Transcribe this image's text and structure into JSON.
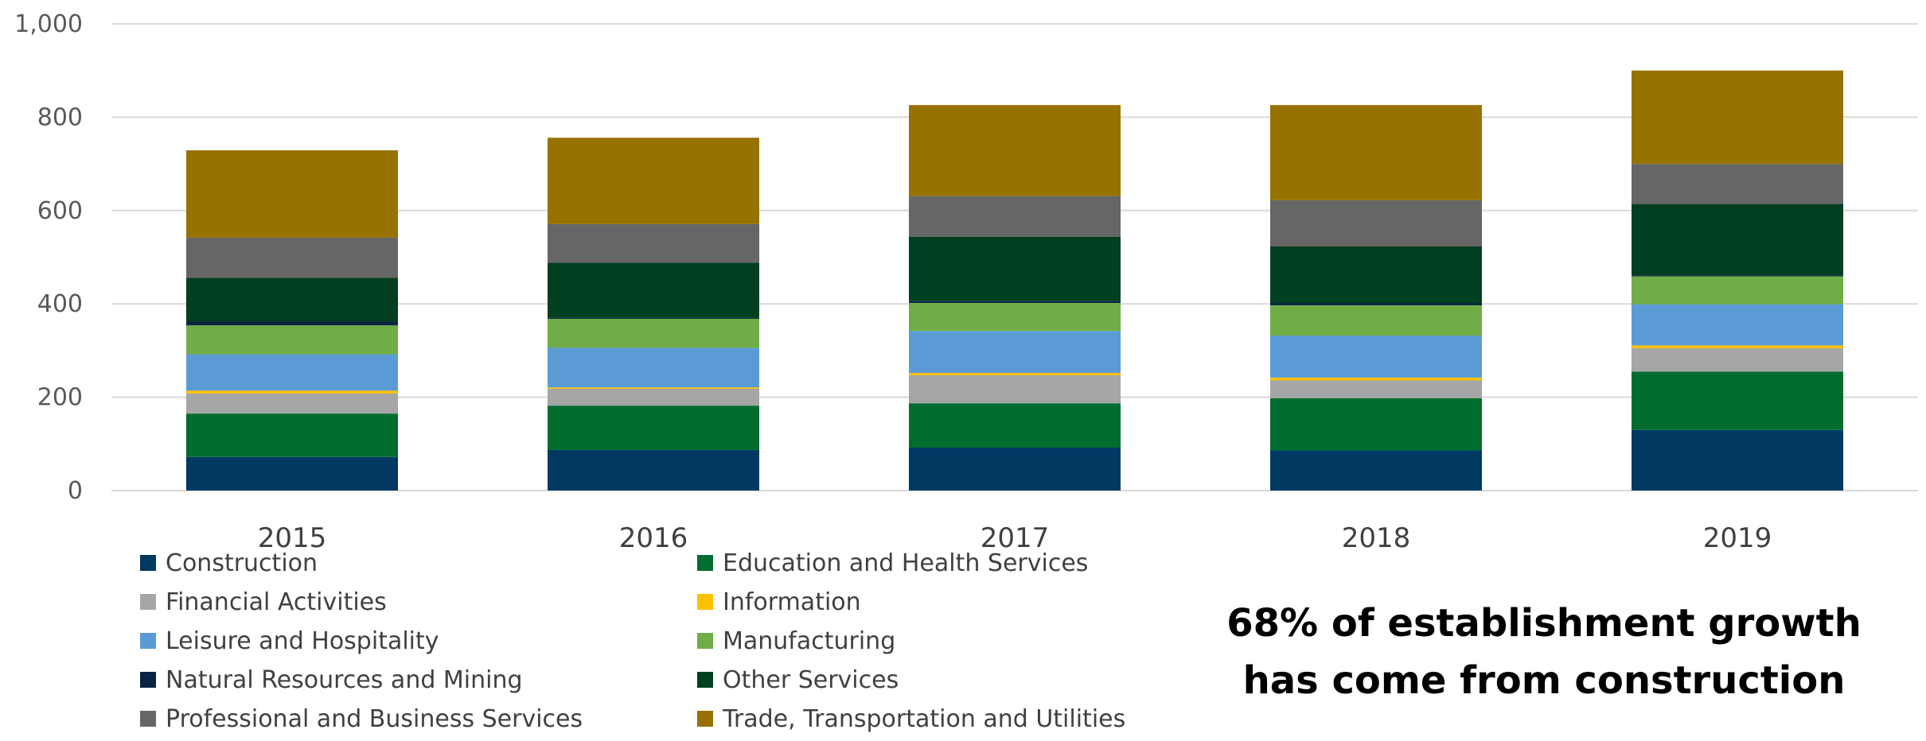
{
  "chart_data": {
    "type": "bar",
    "stacked": true,
    "title": "",
    "xlabel": "",
    "ylabel": "",
    "ylim": [
      0,
      1000
    ],
    "yticks": [
      0,
      200,
      400,
      600,
      800,
      1000
    ],
    "ytick_labels": [
      "0",
      "200",
      "400",
      "600",
      "800",
      "1,000"
    ],
    "grid": true,
    "legend_position": "bottom-left",
    "categories": [
      "2015",
      "2016",
      "2017",
      "2018",
      "2019"
    ],
    "series": [
      {
        "name": "Construction",
        "color": "#003A63",
        "values": [
          72,
          87,
          92,
          86,
          130
        ]
      },
      {
        "name": "Education and Health Services",
        "color": "#006D2F",
        "values": [
          93,
          95,
          95,
          112,
          125
        ]
      },
      {
        "name": "Financial Activities",
        "color": "#A6A6A6",
        "values": [
          43,
          36,
          60,
          38,
          50
        ]
      },
      {
        "name": "Information",
        "color": "#FFC000",
        "values": [
          6,
          3,
          5,
          6,
          6
        ]
      },
      {
        "name": "Leisure and Hospitality",
        "color": "#5B9BD5",
        "values": [
          78,
          85,
          90,
          90,
          88
        ]
      },
      {
        "name": "Manufacturing",
        "color": "#70AD47",
        "values": [
          62,
          62,
          60,
          65,
          60
        ]
      },
      {
        "name": "Natural Resources and Mining",
        "color": "#0A2342",
        "values": [
          8,
          2,
          4,
          5,
          2
        ]
      },
      {
        "name": "Other Services",
        "color": "#003F1F",
        "values": [
          94,
          118,
          138,
          121,
          153
        ]
      },
      {
        "name": "Professional and Business Services",
        "color": "#666666",
        "values": [
          86,
          83,
          87,
          99,
          86
        ]
      },
      {
        "name": "Trade, Transportation and Utilities",
        "color": "#977200",
        "values": [
          187,
          185,
          195,
          204,
          200
        ]
      }
    ],
    "annotation": [
      "68% of establishment growth",
      "has come from construction"
    ]
  }
}
